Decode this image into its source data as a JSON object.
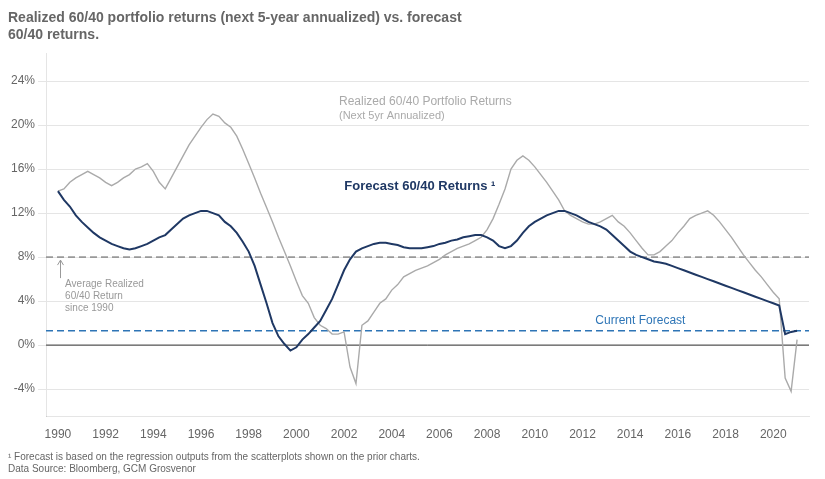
{
  "chart_data": {
    "type": "line",
    "title": [
      "Realized 60/40 portfolio returns (next 5-year annualized) vs. forecast",
      "60/40 returns."
    ],
    "footnotes": [
      "¹ Forecast is based on the regression outputs from the scatterplots shown on the prior charts.",
      "Data Source: Bloomberg, GCM Grosvenor"
    ],
    "x": [
      1990.0,
      1990.25,
      1990.5,
      1990.75,
      1991.0,
      1991.25,
      1991.5,
      1991.75,
      1992.0,
      1992.25,
      1992.5,
      1992.75,
      1993.0,
      1993.25,
      1993.5,
      1993.75,
      1994.0,
      1994.25,
      1994.5,
      1994.75,
      1995.0,
      1995.25,
      1995.5,
      1995.75,
      1996.0,
      1996.25,
      1996.5,
      1996.75,
      1997.0,
      1997.25,
      1997.5,
      1997.75,
      1998.0,
      1998.25,
      1998.5,
      1998.75,
      1999.0,
      1999.25,
      1999.5,
      1999.75,
      2000.0,
      2000.25,
      2000.5,
      2000.75,
      2001.0,
      2001.25,
      2001.5,
      2001.75,
      2002.0,
      2002.25,
      2002.5,
      2002.75,
      2003.0,
      2003.25,
      2003.5,
      2003.75,
      2004.0,
      2004.25,
      2004.5,
      2004.75,
      2005.0,
      2005.25,
      2005.5,
      2005.75,
      2006.0,
      2006.25,
      2006.5,
      2006.75,
      2007.0,
      2007.25,
      2007.5,
      2007.75,
      2008.0,
      2008.25,
      2008.5,
      2008.75,
      2009.0,
      2009.25,
      2009.5,
      2009.75,
      2010.0,
      2010.25,
      2010.5,
      2010.75,
      2011.0,
      2011.25,
      2011.5,
      2011.75,
      2012.0,
      2012.25,
      2012.5,
      2012.75,
      2013.0,
      2013.25,
      2013.5,
      2013.75,
      2014.0,
      2014.25,
      2014.5,
      2014.75,
      2015.0,
      2015.25,
      2015.5,
      2015.75,
      2016.0,
      2016.25,
      2016.5,
      2016.75,
      2017.0,
      2017.25,
      2017.5,
      2017.75,
      2018.0,
      2018.25,
      2018.5,
      2018.75,
      2019.0,
      2019.25,
      2019.5,
      2019.75,
      2020.0,
      2020.25,
      2020.5,
      2020.75,
      2021.0
    ],
    "series": [
      {
        "name": "Realized 60/40 Portfolio Returns\n(Next 5yr Annualized)",
        "color": "#aaaaaa",
        "values": [
          0.14,
          0.142,
          0.148,
          0.152,
          0.155,
          0.158,
          0.155,
          0.152,
          0.148,
          0.145,
          0.148,
          0.152,
          0.155,
          0.16,
          0.162,
          0.165,
          0.158,
          0.148,
          0.142,
          0.152,
          0.162,
          0.172,
          0.182,
          0.19,
          0.198,
          0.205,
          0.21,
          0.208,
          0.202,
          0.198,
          0.19,
          0.178,
          0.165,
          0.152,
          0.138,
          0.125,
          0.112,
          0.098,
          0.085,
          0.072,
          0.058,
          0.045,
          0.038,
          0.025,
          0.018,
          0.015,
          0.01,
          0.01,
          0.012,
          -0.02,
          -0.035,
          0.018,
          0.022,
          0.03,
          0.038,
          0.042,
          0.05,
          0.055,
          0.062,
          0.065,
          0.068,
          0.07,
          0.072,
          0.075,
          0.078,
          0.082,
          0.085,
          0.088,
          0.09,
          0.092,
          0.095,
          0.098,
          0.105,
          0.115,
          0.128,
          0.142,
          0.16,
          0.168,
          0.172,
          0.168,
          0.162,
          0.155,
          0.148,
          0.14,
          0.132,
          0.122,
          0.118,
          0.115,
          0.112,
          0.11,
          0.11,
          0.112,
          0.115,
          0.118,
          0.112,
          0.108,
          0.102,
          0.095,
          0.088,
          0.082,
          0.082,
          0.085,
          0.09,
          0.095,
          0.102,
          0.108,
          0.115,
          0.118,
          0.12,
          0.122,
          0.118,
          0.112,
          0.105,
          0.098,
          0.09,
          0.082,
          0.075,
          0.068,
          0.062,
          0.055,
          0.048,
          0.042,
          -0.03,
          -0.042,
          0.005
        ]
      },
      {
        "name": "Forecast 60/40 Returns ¹",
        "color": "#1F3864",
        "values": [
          0.14,
          0.132,
          0.126,
          0.118,
          0.112,
          0.107,
          0.102,
          0.098,
          0.095,
          0.092,
          0.09,
          0.088,
          0.087,
          0.088,
          0.09,
          0.092,
          0.095,
          0.098,
          0.1,
          0.105,
          0.11,
          0.115,
          0.118,
          0.12,
          0.122,
          0.122,
          0.12,
          0.118,
          0.112,
          0.108,
          0.102,
          0.094,
          0.085,
          0.072,
          0.055,
          0.038,
          0.02,
          0.008,
          0.001,
          -0.005,
          -0.002,
          0.005,
          0.01,
          0.016,
          0.022,
          0.032,
          0.042,
          0.055,
          0.068,
          0.078,
          0.085,
          0.088,
          0.09,
          0.092,
          0.093,
          0.093,
          0.092,
          0.091,
          0.089,
          0.088,
          0.088,
          0.088,
          0.089,
          0.09,
          0.092,
          0.093,
          0.095,
          0.096,
          0.098,
          0.099,
          0.1,
          0.1,
          0.098,
          0.095,
          0.09,
          0.088,
          0.09,
          0.095,
          0.102,
          0.108,
          0.112,
          0.115,
          0.118,
          0.12,
          0.122,
          0.122,
          0.12,
          0.118,
          0.115,
          0.112,
          0.11,
          0.108,
          0.105,
          0.1,
          0.095,
          0.09,
          0.085,
          0.082,
          0.08,
          0.078,
          0.076,
          0.075,
          0.074,
          0.072,
          0.07,
          0.068,
          0.066,
          0.064,
          0.062,
          0.06,
          0.058,
          0.056,
          0.054,
          0.052,
          0.05,
          0.048,
          0.046,
          0.044,
          0.042,
          0.04,
          0.038,
          0.036,
          0.01,
          0.012,
          0.013
        ]
      }
    ],
    "hlines": [
      {
        "value": 0,
        "color": "#333333",
        "line_style": "solid"
      },
      {
        "value": 0.08,
        "color": "#999999",
        "line_style": "dashed",
        "label": "Average Realized\n60/40 Return\nsince 1990"
      },
      {
        "value": 0.013,
        "color": "#2E75B6",
        "line_style": "dashed",
        "label": "Current Forecast"
      }
    ],
    "xlim": [
      1989.5,
      2021.5
    ],
    "xticks": [
      1990,
      1992,
      1994,
      1996,
      1998,
      2000,
      2002,
      2004,
      2006,
      2008,
      2010,
      2012,
      2014,
      2016,
      2018,
      2020
    ],
    "ylim": [
      -0.065,
      0.265
    ],
    "yticks": [
      {
        "value": -0.04,
        "label": "-4%"
      },
      {
        "value": 0.0,
        "label": "0%"
      },
      {
        "value": 0.04,
        "label": "4%"
      },
      {
        "value": 0.08,
        "label": "8%"
      },
      {
        "value": 0.12,
        "label": "12%"
      },
      {
        "value": 0.16,
        "label": "16%"
      },
      {
        "value": 0.2,
        "label": "20%"
      },
      {
        "value": 0.24,
        "label": "24%"
      }
    ],
    "grid": "y"
  }
}
